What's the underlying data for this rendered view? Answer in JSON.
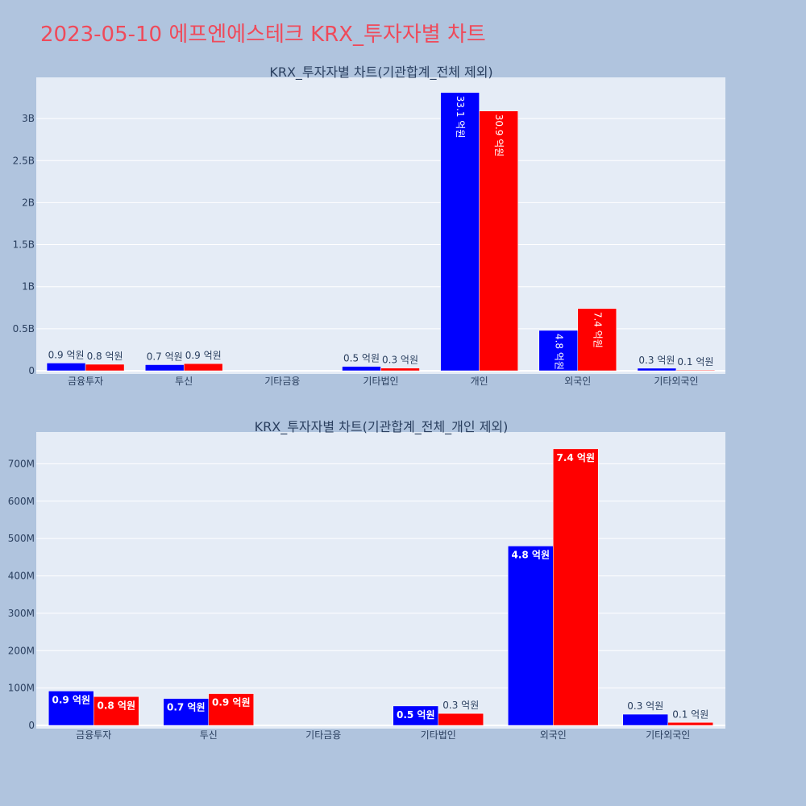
{
  "page": {
    "title": "2023-05-10 에프엔에스테크 KRX_투자자별 차트"
  },
  "colors": {
    "series_a": "#0000ff",
    "series_b": "#ff0000",
    "plot_bg": "#e5ecf6",
    "page_bg": "#b0c4de",
    "grid": "#ffffff",
    "text": "#2a3f5f"
  },
  "chart_data": [
    {
      "type": "bar",
      "title": "KRX_투자자별 차트(기관합계_전체 제외)",
      "categories": [
        "금융투자",
        "투신",
        "기타금융",
        "기타법인",
        "개인",
        "외국인",
        "기타외국인"
      ],
      "series": [
        {
          "values": [
            92000000,
            72000000,
            0,
            52000000,
            3310000000,
            480000000,
            30000000
          ],
          "labels": [
            "0.9 억원",
            "0.7 억원",
            "",
            "0.5 억원",
            "33.1 억원",
            "4.8 억원",
            "0.3 억원"
          ]
        },
        {
          "values": [
            77000000,
            85000000,
            0,
            32000000,
            3090000000,
            740000000,
            8000000
          ],
          "labels": [
            "0.8 억원",
            "0.9 억원",
            "",
            "0.3 억원",
            "30.9 억원",
            "7.4 억원",
            "0.1 억원"
          ]
        }
      ],
      "ylim": [
        0,
        3490000000
      ],
      "yticks": [
        0,
        500000000,
        1000000000,
        1500000000,
        2000000000,
        2500000000,
        3000000000
      ],
      "ytick_labels": [
        "0",
        "0.5B",
        "1B",
        "1.5B",
        "2B",
        "2.5B",
        "3B"
      ],
      "grid": true,
      "label_position": "auto",
      "inside_label_rotated": true
    },
    {
      "type": "bar",
      "title": "KRX_투자자별 차트(기관합계_전체_개인 제외)",
      "categories": [
        "금융투자",
        "투신",
        "기타금융",
        "기타법인",
        "외국인",
        "기타외국인"
      ],
      "series": [
        {
          "values": [
            92000000,
            72000000,
            0,
            52000000,
            480000000,
            30000000
          ],
          "labels": [
            "0.9 억원",
            "0.7 억원",
            "",
            "0.5 억원",
            "4.8 억원",
            "0.3 억원"
          ]
        },
        {
          "values": [
            77000000,
            85000000,
            0,
            32000000,
            740000000,
            8000000
          ],
          "labels": [
            "0.8 억원",
            "0.9 억원",
            "",
            "0.3 억원",
            "7.4 억원",
            "0.1 억원"
          ]
        }
      ],
      "ylim": [
        0,
        785000000
      ],
      "yticks": [
        0,
        100000000,
        200000000,
        300000000,
        400000000,
        500000000,
        600000000,
        700000000
      ],
      "ytick_labels": [
        "0",
        "100M",
        "200M",
        "300M",
        "400M",
        "500M",
        "600M",
        "700M"
      ],
      "grid": true,
      "label_position": "auto",
      "inside_label_rotated": false
    }
  ]
}
